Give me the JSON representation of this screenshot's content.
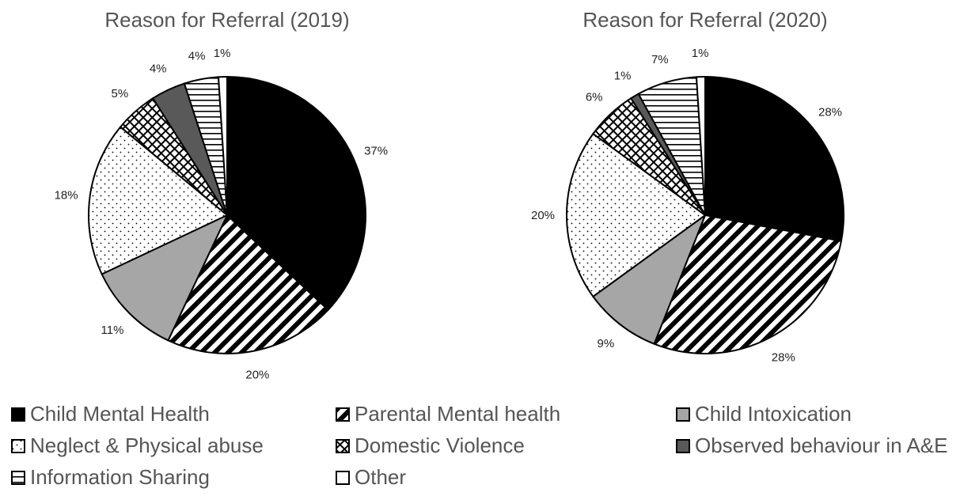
{
  "chart_data": [
    {
      "type": "pie",
      "title": "Reason for Referral (2019)",
      "slices": [
        {
          "category": "Child Mental Health",
          "value": 37,
          "label": "37%"
        },
        {
          "category": "Parental Mental health",
          "value": 20,
          "label": "20%"
        },
        {
          "category": "Child Intoxication",
          "value": 11,
          "label": "11%"
        },
        {
          "category": "Neglect & Physical abuse",
          "value": 18,
          "label": "18%"
        },
        {
          "category": "Domestic Violence",
          "value": 5,
          "label": "5%"
        },
        {
          "category": "Observed behaviour in A&E",
          "value": 4,
          "label": "4%"
        },
        {
          "category": "Information Sharing",
          "value": 4,
          "label": "4%"
        },
        {
          "category": "Other",
          "value": 1,
          "label": "1%"
        }
      ]
    },
    {
      "type": "pie",
      "title": "Reason for Referral (2020)",
      "slices": [
        {
          "category": "Child Mental Health",
          "value": 28,
          "label": "28%"
        },
        {
          "category": "Parental Mental health",
          "value": 28,
          "label": "28%"
        },
        {
          "category": "Child Intoxication",
          "value": 9,
          "label": "9%"
        },
        {
          "category": "Neglect & Physical abuse",
          "value": 20,
          "label": "20%"
        },
        {
          "category": "Domestic Violence",
          "value": 6,
          "label": "6%"
        },
        {
          "category": "Observed behaviour in A&E",
          "value": 1,
          "label": "1%"
        },
        {
          "category": "Information Sharing",
          "value": 7,
          "label": "7%"
        },
        {
          "category": "Other",
          "value": 1,
          "label": "1%"
        }
      ]
    }
  ],
  "legend": {
    "placement": "bottom",
    "items": [
      {
        "label": "Child Mental Health",
        "pattern": "solid-black"
      },
      {
        "label": "Parental Mental health",
        "pattern": "diagonal-stripes"
      },
      {
        "label": "Child Intoxication",
        "pattern": "light-gray"
      },
      {
        "label": "Neglect & Physical abuse",
        "pattern": "dots"
      },
      {
        "label": "Domestic Violence",
        "pattern": "crosshatch"
      },
      {
        "label": "Observed behaviour in A&E",
        "pattern": "dark-gray"
      },
      {
        "label": "Information Sharing",
        "pattern": "horizontal-stripes"
      },
      {
        "label": "Other",
        "pattern": "white"
      }
    ]
  },
  "colors": {
    "solid": "#000000",
    "light_gray": "#a6a6a6",
    "dark_gray": "#595959",
    "outline": "#000000",
    "text": "#555555"
  }
}
